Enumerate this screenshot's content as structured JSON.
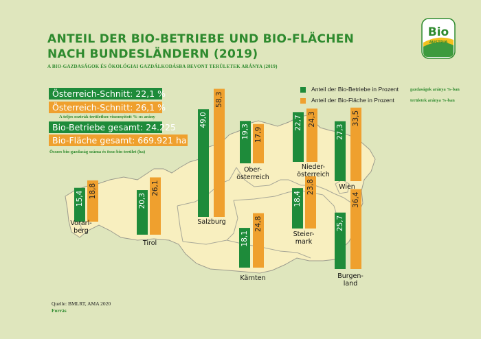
{
  "chart_data": {
    "type": "bar",
    "title": "ANTEIL DER BIO-BETRIEBE UND BIO-FLÄCHEN NACH BUNDESLÄNDERN (2019)",
    "title_lines": [
      "ANTEIL DER BIO-BETRIEBE UND BIO-FLÄCHEN",
      "NACH BUNDESLÄNDERN (2019)"
    ],
    "subtitle": "A BIO-GAZDASÁGOK ÉS ÖKOLÓGIAI GAZDÁLKODÁSBA BEVONT TERÜLETEK ARÁNYA (2019)",
    "categories": [
      "Vorarlberg",
      "Tirol",
      "Salzburg",
      "Oberösterreich",
      "Kärnten",
      "Steiermark",
      "Niederösterreich",
      "Wien",
      "Burgenland"
    ],
    "category_labels": [
      [
        "Vorarl-",
        "berg"
      ],
      [
        "Tirol"
      ],
      [
        "Salzburg"
      ],
      [
        "Ober-",
        "österreich"
      ],
      [
        "Kärnten"
      ],
      [
        "Steier-",
        "mark"
      ],
      [
        "Nieder-",
        "österreich"
      ],
      [
        "Wien"
      ],
      [
        "Burgen-",
        "land"
      ]
    ],
    "series": [
      {
        "name": "Anteil der Bio-Betriebe in Prozent",
        "color": "#1e8b3a",
        "values": [
          15.4,
          20.3,
          49.0,
          19.3,
          18.1,
          18.4,
          22.7,
          27.3,
          25.7
        ],
        "value_labels": [
          "15,4",
          "20,3",
          "49,0",
          "19,3",
          "18,1",
          "18,4",
          "22,7",
          "27,3",
          "25,7"
        ]
      },
      {
        "name": "Anteil der Bio-Fläche in Prozent",
        "color": "#efa02e",
        "values": [
          18.8,
          26.1,
          58.3,
          17.9,
          24.8,
          23.8,
          24.3,
          33.5,
          36.4
        ],
        "value_labels": [
          "18,8",
          "26,1",
          "58,3",
          "17,9",
          "24,8",
          "23,8",
          "24,3",
          "33,5",
          "36,4"
        ]
      }
    ],
    "legend": {
      "placement": "top-right",
      "items": [
        {
          "label": "Anteil der Bio-Betriebe in Prozent",
          "note": "gazdaságok aránya %-ban",
          "color": "#1e8b3a"
        },
        {
          "label": "Anteil der Bio-Fläche in Prozent",
          "note": "területek aránya %-ban",
          "color": "#efa02e"
        }
      ]
    },
    "summary_boxes": [
      {
        "text": "Österreich-Schnitt: 22,1 %",
        "color": "#1e8b3a"
      },
      {
        "text": "Österreich-Schnitt: 26,1 %",
        "color": "#efa02e"
      },
      {
        "text": "Bio-Betriebe gesamt: 24.225",
        "color": "#1e8b3a"
      },
      {
        "text": "Bio-Fläche gesamt: 669.921 ha",
        "color": "#efa02e"
      }
    ],
    "summary_notes": [
      "A teljes osztrák területhez viszonyított %-os arány",
      "Összes bio-gazdaság száma és össz-bio-terület (ha)"
    ],
    "source": "Quelle: BMLRT, AMA 2020",
    "source_hu": "Forrás"
  },
  "logo": {
    "text_top": "Bio",
    "text_bottom": "AUSTRIA"
  },
  "colors": {
    "accent_green": "#2e8a2e",
    "map_fill": "#f8efbf",
    "map_stroke": "#9b9b8e",
    "background": "#dfe6bd"
  }
}
